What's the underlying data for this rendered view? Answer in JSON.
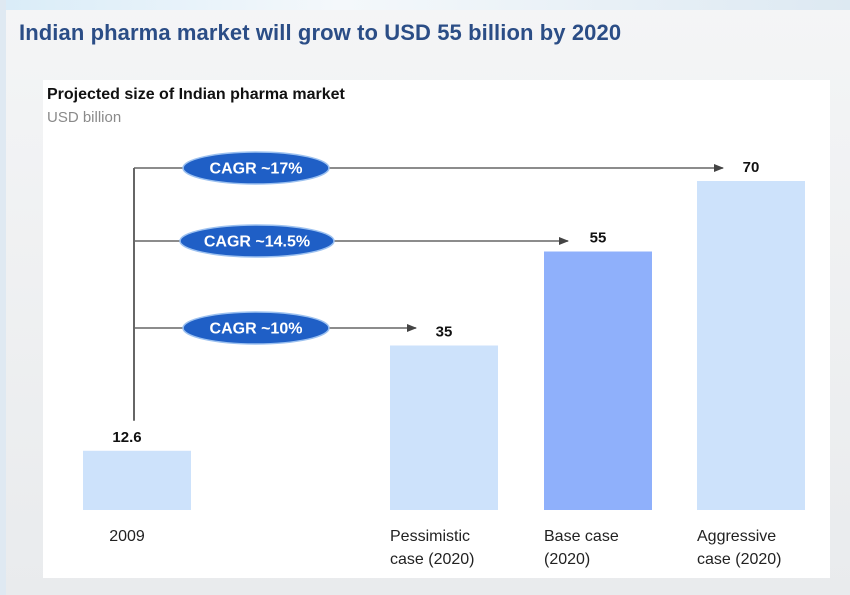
{
  "header": {
    "headline": "Indian pharma market will grow to USD 55 billion by 2020"
  },
  "chart_data": {
    "type": "bar",
    "title": "Projected size of Indian pharma market",
    "subtitle": "USD billion",
    "categories": [
      "2009",
      "Pessimistic\ncase (2020)",
      "Base case\n(2020)",
      "Aggressive\ncase (2020)"
    ],
    "values": [
      12.6,
      35,
      55,
      70
    ],
    "value_labels": [
      "12.6",
      "35",
      "55",
      "70"
    ],
    "bar_colors": [
      "#cde2fb",
      "#cde2fb",
      "#8fb0fb",
      "#cde2fb"
    ],
    "ylim": [
      0,
      70
    ],
    "grid": false,
    "legend": "none",
    "annotations": [
      {
        "label": "CAGR ~17%",
        "target": "Aggressive\ncase (2020)"
      },
      {
        "label": "CAGR ~14.5%",
        "target": "Base case\n(2020)"
      },
      {
        "label": "CAGR ~10%",
        "target": "Pessimistic\ncase (2020)"
      }
    ]
  },
  "colors": {
    "headline": "#2b4d86",
    "cagr_badge": "#1f5fc6",
    "connector": "#666666"
  }
}
